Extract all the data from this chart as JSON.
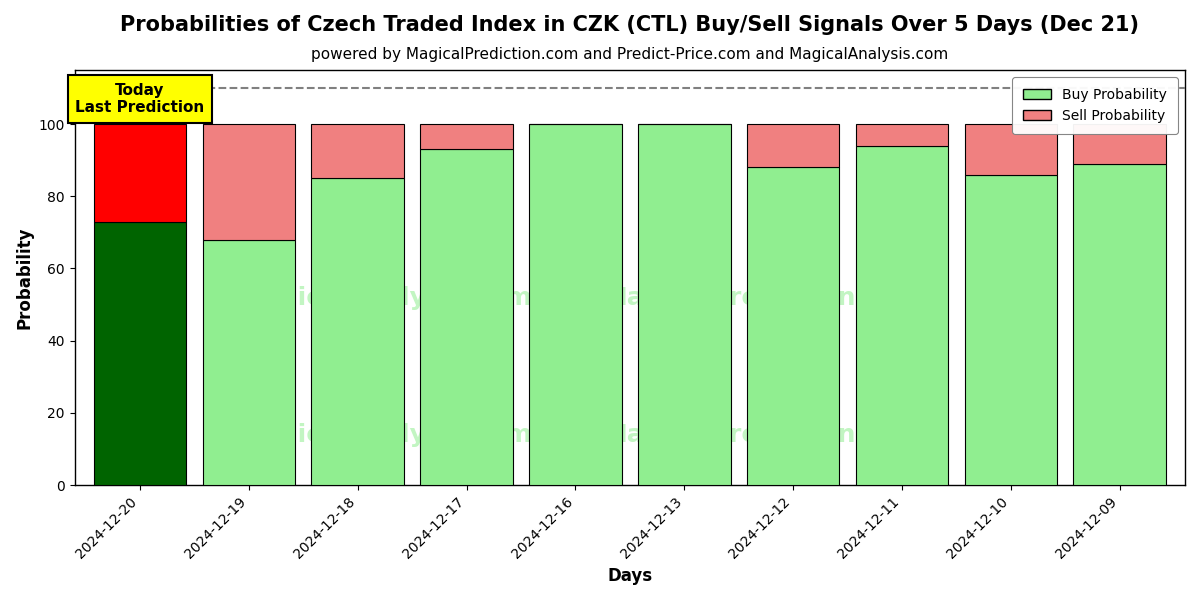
{
  "title": "Probabilities of Czech Traded Index in CZK (CTL) Buy/Sell Signals Over 5 Days (Dec 21)",
  "subtitle": "powered by MagicalPrediction.com and Predict-Price.com and MagicalAnalysis.com",
  "xlabel": "Days",
  "ylabel": "Probability",
  "dates": [
    "2024-12-20",
    "2024-12-19",
    "2024-12-18",
    "2024-12-17",
    "2024-12-16",
    "2024-12-13",
    "2024-12-12",
    "2024-12-11",
    "2024-12-10",
    "2024-12-09"
  ],
  "buy_values": [
    73,
    68,
    85,
    93,
    100,
    100,
    88,
    94,
    86,
    89
  ],
  "sell_values": [
    27,
    32,
    15,
    7,
    0,
    0,
    12,
    6,
    14,
    11
  ],
  "buy_colors": [
    "#006400",
    "#90EE90",
    "#90EE90",
    "#90EE90",
    "#90EE90",
    "#90EE90",
    "#90EE90",
    "#90EE90",
    "#90EE90",
    "#90EE90"
  ],
  "sell_colors": [
    "#FF0000",
    "#F08080",
    "#F08080",
    "#F08080",
    "#F08080",
    "#F08080",
    "#F08080",
    "#F08080",
    "#F08080",
    "#F08080"
  ],
  "legend_buy_color": "#90EE90",
  "legend_sell_color": "#F08080",
  "dashed_line_y": 110,
  "ylim": [
    0,
    115
  ],
  "yticks": [
    0,
    20,
    40,
    60,
    80,
    100
  ],
  "annotation_text": "Today\nLast Prediction",
  "annotation_bg_color": "#FFFF00",
  "title_fontsize": 15,
  "subtitle_fontsize": 11,
  "bar_width": 0.85,
  "grid_color": "#FFFFFF",
  "bg_color": "#FFFFFF"
}
